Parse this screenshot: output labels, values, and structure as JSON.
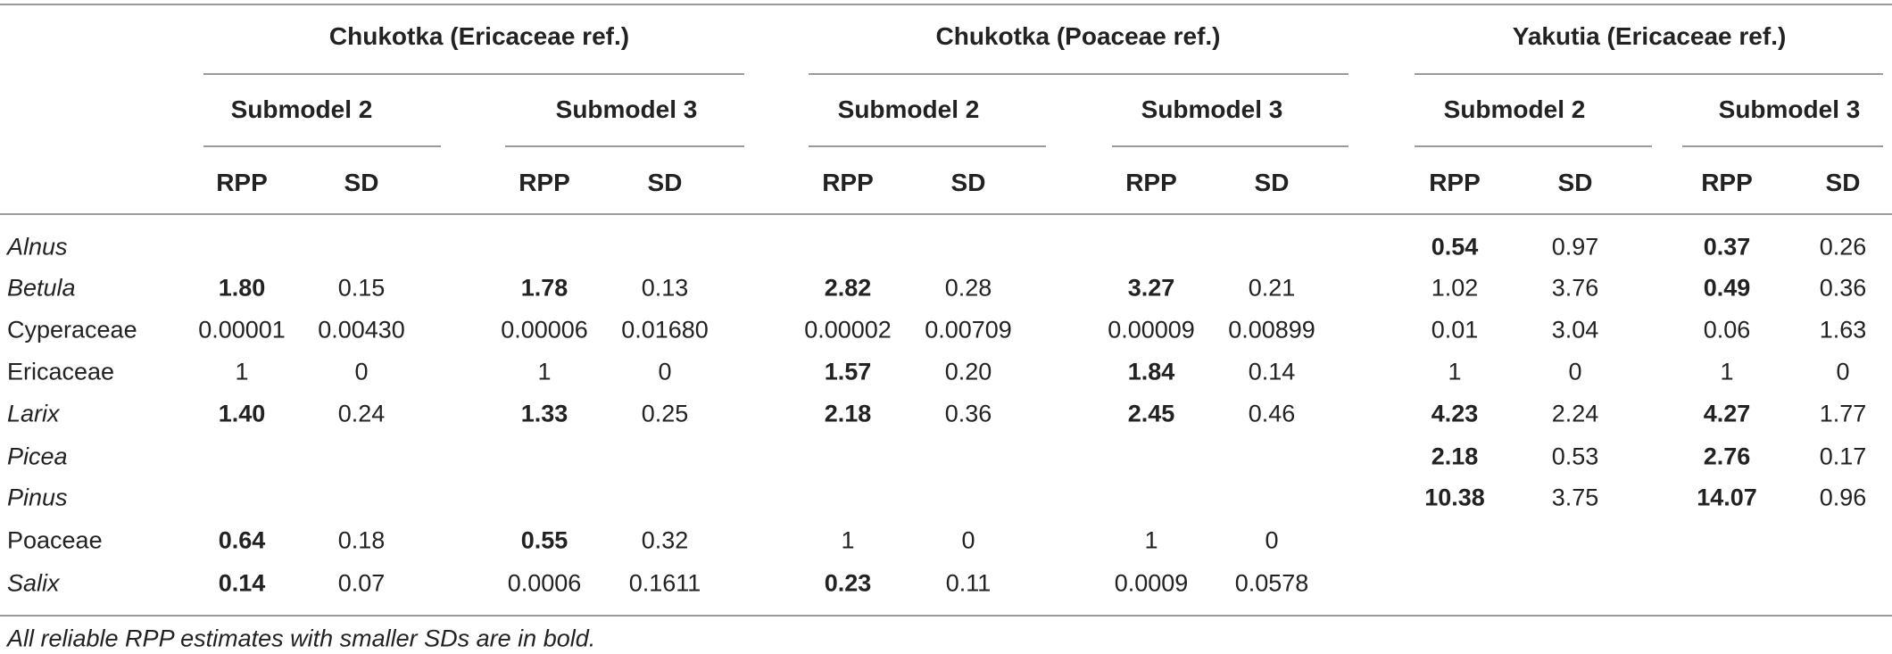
{
  "groups": [
    {
      "label": "Chukotka (Ericaceae ref.)",
      "submodels": [
        "Submodel 2",
        "Submodel 3"
      ]
    },
    {
      "label": "Chukotka (Poaceae ref.)",
      "submodels": [
        "Submodel 2",
        "Submodel 3"
      ]
    },
    {
      "label": "Yakutia (Ericaceae ref.)",
      "submodels": [
        "Submodel 2",
        "Submodel 3"
      ]
    }
  ],
  "column_labels": [
    "RPP",
    "SD",
    "RPP",
    "SD",
    "RPP",
    "SD",
    "RPP",
    "SD",
    "RPP",
    "SD",
    "RPP",
    "SD"
  ],
  "rows": [
    {
      "taxon": "Alnus",
      "italic": true,
      "cells": [
        {
          "v": ""
        },
        {
          "v": ""
        },
        {
          "v": ""
        },
        {
          "v": ""
        },
        {
          "v": ""
        },
        {
          "v": ""
        },
        {
          "v": ""
        },
        {
          "v": ""
        },
        {
          "v": "0.54",
          "b": true
        },
        {
          "v": "0.97"
        },
        {
          "v": "0.37",
          "b": true
        },
        {
          "v": "0.26"
        }
      ]
    },
    {
      "taxon": "Betula",
      "italic": true,
      "cells": [
        {
          "v": "1.80",
          "b": true
        },
        {
          "v": "0.15"
        },
        {
          "v": "1.78",
          "b": true
        },
        {
          "v": "0.13"
        },
        {
          "v": "2.82",
          "b": true
        },
        {
          "v": "0.28"
        },
        {
          "v": "3.27",
          "b": true
        },
        {
          "v": "0.21"
        },
        {
          "v": "1.02"
        },
        {
          "v": "3.76"
        },
        {
          "v": "0.49",
          "b": true
        },
        {
          "v": "0.36"
        }
      ]
    },
    {
      "taxon": "Cyperaceae",
      "italic": false,
      "cells": [
        {
          "v": "0.00001"
        },
        {
          "v": "0.00430"
        },
        {
          "v": "0.00006"
        },
        {
          "v": "0.01680"
        },
        {
          "v": "0.00002"
        },
        {
          "v": "0.00709"
        },
        {
          "v": "0.00009"
        },
        {
          "v": "0.00899"
        },
        {
          "v": "0.01"
        },
        {
          "v": "3.04"
        },
        {
          "v": "0.06"
        },
        {
          "v": "1.63"
        }
      ]
    },
    {
      "taxon": "Ericaceae",
      "italic": false,
      "cells": [
        {
          "v": "1"
        },
        {
          "v": "0"
        },
        {
          "v": "1"
        },
        {
          "v": "0"
        },
        {
          "v": "1.57",
          "b": true
        },
        {
          "v": "0.20"
        },
        {
          "v": "1.84",
          "b": true
        },
        {
          "v": "0.14"
        },
        {
          "v": "1"
        },
        {
          "v": "0"
        },
        {
          "v": "1"
        },
        {
          "v": "0"
        }
      ]
    },
    {
      "taxon": "Larix",
      "italic": true,
      "cells": [
        {
          "v": "1.40",
          "b": true
        },
        {
          "v": "0.24"
        },
        {
          "v": "1.33",
          "b": true
        },
        {
          "v": "0.25"
        },
        {
          "v": "2.18",
          "b": true
        },
        {
          "v": "0.36"
        },
        {
          "v": "2.45",
          "b": true
        },
        {
          "v": "0.46"
        },
        {
          "v": "4.23",
          "b": true
        },
        {
          "v": "2.24"
        },
        {
          "v": "4.27",
          "b": true
        },
        {
          "v": "1.77"
        }
      ]
    },
    {
      "taxon": "Picea",
      "italic": true,
      "cells": [
        {
          "v": ""
        },
        {
          "v": ""
        },
        {
          "v": ""
        },
        {
          "v": ""
        },
        {
          "v": ""
        },
        {
          "v": ""
        },
        {
          "v": ""
        },
        {
          "v": ""
        },
        {
          "v": "2.18",
          "b": true
        },
        {
          "v": "0.53"
        },
        {
          "v": "2.76",
          "b": true
        },
        {
          "v": "0.17"
        }
      ]
    },
    {
      "taxon": "Pinus",
      "italic": true,
      "cells": [
        {
          "v": ""
        },
        {
          "v": ""
        },
        {
          "v": ""
        },
        {
          "v": ""
        },
        {
          "v": ""
        },
        {
          "v": ""
        },
        {
          "v": ""
        },
        {
          "v": ""
        },
        {
          "v": "10.38",
          "b": true
        },
        {
          "v": "3.75"
        },
        {
          "v": "14.07",
          "b": true
        },
        {
          "v": "0.96"
        }
      ]
    },
    {
      "taxon": "Poaceae",
      "italic": false,
      "cells": [
        {
          "v": "0.64",
          "b": true
        },
        {
          "v": "0.18"
        },
        {
          "v": "0.55",
          "b": true
        },
        {
          "v": "0.32"
        },
        {
          "v": "1"
        },
        {
          "v": "0"
        },
        {
          "v": "1"
        },
        {
          "v": "0"
        },
        {
          "v": ""
        },
        {
          "v": ""
        },
        {
          "v": ""
        },
        {
          "v": ""
        }
      ]
    },
    {
      "taxon": "Salix",
      "italic": true,
      "cells": [
        {
          "v": "0.14",
          "b": true
        },
        {
          "v": "0.07"
        },
        {
          "v": "0.0006"
        },
        {
          "v": "0.1611"
        },
        {
          "v": "0.23",
          "b": true
        },
        {
          "v": "0.11"
        },
        {
          "v": "0.0009"
        },
        {
          "v": "0.0578"
        },
        {
          "v": ""
        },
        {
          "v": ""
        },
        {
          "v": ""
        },
        {
          "v": ""
        }
      ]
    }
  ],
  "footnote": "All reliable RPP estimates with smaller SDs are in bold."
}
